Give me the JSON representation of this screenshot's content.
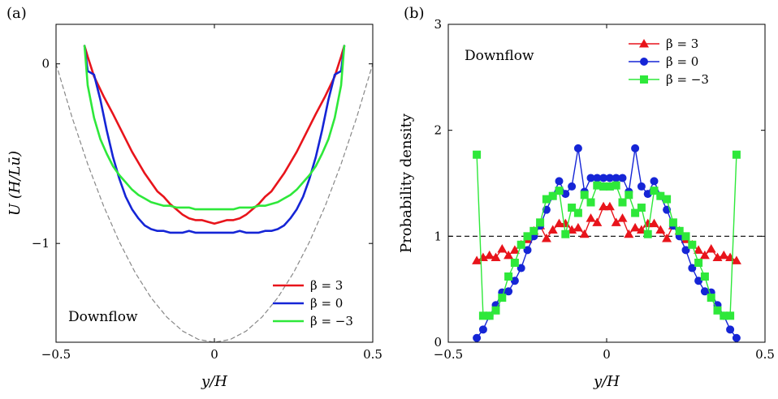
{
  "chart_data": [
    {
      "panel_label": "(a)",
      "type": "line",
      "xlabel": "y/H",
      "ylabel": "U (H/Lū)",
      "xlim": [
        -0.5,
        0.5
      ],
      "ylim": [
        -1.55,
        0.22
      ],
      "xticks": [
        "-0.5",
        "0",
        "0.5"
      ],
      "yticks": [
        "0",
        "-1"
      ],
      "annotation": "Downflow",
      "legend_position": "bottom-right",
      "series": [
        {
          "name": "β = 3",
          "color": "#e8141b",
          "x": [
            -0.41,
            -0.4,
            -0.38,
            -0.35,
            -0.32,
            -0.3,
            -0.28,
            -0.26,
            -0.24,
            -0.22,
            -0.2,
            -0.18,
            -0.16,
            -0.14,
            -0.12,
            -0.1,
            -0.08,
            -0.06,
            -0.04,
            -0.02,
            0.0,
            0.02,
            0.04,
            0.06,
            0.08,
            0.1,
            0.12,
            0.14,
            0.16,
            0.18,
            0.2,
            0.22,
            0.24,
            0.26,
            0.28,
            0.3,
            0.32,
            0.35,
            0.38,
            0.4,
            0.41
          ],
          "y": [
            0.1,
            0.04,
            -0.07,
            -0.18,
            -0.28,
            -0.35,
            -0.42,
            -0.49,
            -0.55,
            -0.61,
            -0.66,
            -0.71,
            -0.74,
            -0.78,
            -0.81,
            -0.84,
            -0.86,
            -0.87,
            -0.87,
            -0.88,
            -0.89,
            -0.88,
            -0.87,
            -0.87,
            -0.86,
            -0.84,
            -0.81,
            -0.78,
            -0.74,
            -0.71,
            -0.66,
            -0.61,
            -0.55,
            -0.49,
            -0.42,
            -0.35,
            -0.28,
            -0.18,
            -0.07,
            0.04,
            0.1
          ]
        },
        {
          "name": "β = 0",
          "color": "#1525d6",
          "x": [
            -0.41,
            -0.4,
            -0.38,
            -0.36,
            -0.34,
            -0.32,
            -0.3,
            -0.28,
            -0.26,
            -0.24,
            -0.22,
            -0.2,
            -0.18,
            -0.16,
            -0.14,
            -0.12,
            -0.1,
            -0.08,
            -0.06,
            -0.04,
            -0.02,
            0.0,
            0.02,
            0.04,
            0.06,
            0.08,
            0.1,
            0.12,
            0.14,
            0.16,
            0.18,
            0.2,
            0.22,
            0.24,
            0.26,
            0.28,
            0.3,
            0.32,
            0.34,
            0.36,
            0.38,
            0.4,
            0.41
          ],
          "y": [
            0.1,
            -0.04,
            -0.06,
            -0.2,
            -0.37,
            -0.52,
            -0.64,
            -0.74,
            -0.81,
            -0.86,
            -0.9,
            -0.92,
            -0.93,
            -0.93,
            -0.94,
            -0.94,
            -0.94,
            -0.93,
            -0.94,
            -0.94,
            -0.94,
            -0.94,
            -0.94,
            -0.94,
            -0.94,
            -0.93,
            -0.94,
            -0.94,
            -0.94,
            -0.93,
            -0.93,
            -0.92,
            -0.9,
            -0.86,
            -0.81,
            -0.74,
            -0.64,
            -0.52,
            -0.37,
            -0.2,
            -0.06,
            -0.04,
            0.1
          ]
        },
        {
          "name": "β = −3",
          "color": "#2ee83a",
          "x": [
            -0.41,
            -0.4,
            -0.38,
            -0.36,
            -0.34,
            -0.32,
            -0.3,
            -0.28,
            -0.26,
            -0.24,
            -0.22,
            -0.2,
            -0.18,
            -0.16,
            -0.14,
            -0.12,
            -0.1,
            -0.08,
            -0.06,
            -0.04,
            -0.02,
            0.0,
            0.02,
            0.04,
            0.06,
            0.08,
            0.1,
            0.12,
            0.14,
            0.16,
            0.18,
            0.2,
            0.22,
            0.24,
            0.26,
            0.28,
            0.3,
            0.32,
            0.34,
            0.36,
            0.38,
            0.4,
            0.41
          ],
          "y": [
            0.1,
            -0.12,
            -0.3,
            -0.42,
            -0.5,
            -0.57,
            -0.62,
            -0.66,
            -0.7,
            -0.73,
            -0.75,
            -0.77,
            -0.78,
            -0.79,
            -0.79,
            -0.8,
            -0.8,
            -0.8,
            -0.81,
            -0.81,
            -0.81,
            -0.81,
            -0.81,
            -0.81,
            -0.81,
            -0.8,
            -0.8,
            -0.8,
            -0.79,
            -0.79,
            -0.78,
            -0.77,
            -0.75,
            -0.73,
            -0.7,
            -0.66,
            -0.62,
            -0.57,
            -0.5,
            -0.42,
            -0.3,
            -0.12,
            0.1
          ]
        },
        {
          "name": "",
          "color": "#888888",
          "dashed": true,
          "x": [
            -0.5,
            -0.45,
            -0.4,
            -0.35,
            -0.3,
            -0.25,
            -0.2,
            -0.15,
            -0.1,
            -0.05,
            0.0,
            0.05,
            0.1,
            0.15,
            0.2,
            0.25,
            0.3,
            0.35,
            0.4,
            0.45,
            0.5
          ],
          "y": [
            0.0,
            -0.2945,
            -0.558,
            -0.7905,
            -0.992,
            -1.1625,
            -1.302,
            -1.4105,
            -1.488,
            -1.5345,
            -1.55,
            -1.5345,
            -1.488,
            -1.4105,
            -1.302,
            -1.1625,
            -0.992,
            -0.7905,
            -0.558,
            -0.2945,
            0.0
          ]
        }
      ]
    },
    {
      "panel_label": "(b)",
      "type": "line",
      "xlabel": "y/H",
      "ylabel": "Probability density",
      "xlim": [
        -0.5,
        0.5
      ],
      "ylim": [
        0,
        3
      ],
      "xticks": [
        "-0.5",
        "0",
        "0.5"
      ],
      "yticks": [
        "0",
        "1",
        "2",
        "3"
      ],
      "annotation": "Downflow",
      "reference_line": 1,
      "legend_position": "top-right",
      "series": [
        {
          "name": "β = 3",
          "color": "#e8141b",
          "marker": "triangle",
          "x": [
            -0.41,
            -0.39,
            -0.37,
            -0.35,
            -0.33,
            -0.31,
            -0.29,
            -0.27,
            -0.25,
            -0.23,
            -0.21,
            -0.19,
            -0.17,
            -0.15,
            -0.13,
            -0.11,
            -0.09,
            -0.07,
            -0.05,
            -0.03,
            -0.01,
            0.01,
            0.03,
            0.05,
            0.07,
            0.09,
            0.11,
            0.13,
            0.15,
            0.17,
            0.19,
            0.21,
            0.23,
            0.25,
            0.27,
            0.29,
            0.31,
            0.33,
            0.35,
            0.37,
            0.39,
            0.41
          ],
          "y": [
            0.77,
            0.8,
            0.82,
            0.8,
            0.88,
            0.82,
            0.87,
            0.92,
            0.97,
            1.05,
            1.1,
            0.98,
            1.06,
            1.12,
            1.12,
            1.06,
            1.08,
            1.02,
            1.17,
            1.13,
            1.28,
            1.28,
            1.13,
            1.17,
            1.02,
            1.08,
            1.06,
            1.12,
            1.12,
            1.06,
            0.98,
            1.1,
            1.05,
            0.97,
            0.92,
            0.87,
            0.82,
            0.88,
            0.8,
            0.82,
            0.8,
            0.77
          ]
        },
        {
          "name": "β = 0",
          "color": "#1525d6",
          "marker": "circle",
          "x": [
            -0.41,
            -0.39,
            -0.37,
            -0.35,
            -0.33,
            -0.31,
            -0.29,
            -0.27,
            -0.25,
            -0.23,
            -0.21,
            -0.19,
            -0.17,
            -0.15,
            -0.13,
            -0.11,
            -0.09,
            -0.07,
            -0.05,
            -0.03,
            -0.01,
            0.01,
            0.03,
            0.05,
            0.07,
            0.09,
            0.11,
            0.13,
            0.15,
            0.17,
            0.19,
            0.21,
            0.23,
            0.25,
            0.27,
            0.29,
            0.31,
            0.33,
            0.35,
            0.37,
            0.39,
            0.41
          ],
          "y": [
            0.04,
            0.12,
            0.25,
            0.35,
            0.47,
            0.48,
            0.58,
            0.7,
            0.87,
            1.0,
            1.1,
            1.25,
            1.38,
            1.52,
            1.4,
            1.47,
            1.83,
            1.42,
            1.55,
            1.55,
            1.55,
            1.55,
            1.55,
            1.55,
            1.42,
            1.83,
            1.47,
            1.4,
            1.52,
            1.38,
            1.25,
            1.1,
            1.0,
            0.87,
            0.7,
            0.58,
            0.48,
            0.47,
            0.35,
            0.25,
            0.12,
            0.04
          ]
        },
        {
          "name": "β = −3",
          "color": "#2ee83a",
          "marker": "square",
          "x": [
            -0.41,
            -0.39,
            -0.37,
            -0.35,
            -0.33,
            -0.31,
            -0.29,
            -0.27,
            -0.25,
            -0.23,
            -0.21,
            -0.19,
            -0.17,
            -0.15,
            -0.13,
            -0.11,
            -0.09,
            -0.07,
            -0.05,
            -0.03,
            -0.01,
            0.01,
            0.03,
            0.05,
            0.07,
            0.09,
            0.11,
            0.13,
            0.15,
            0.17,
            0.19,
            0.21,
            0.23,
            0.25,
            0.27,
            0.29,
            0.31,
            0.33,
            0.35,
            0.37,
            0.39,
            0.41
          ],
          "y": [
            1.77,
            0.25,
            0.25,
            0.3,
            0.42,
            0.62,
            0.75,
            0.92,
            1.0,
            1.05,
            1.13,
            1.35,
            1.38,
            1.43,
            1.02,
            1.27,
            1.22,
            1.39,
            1.32,
            1.48,
            1.47,
            1.47,
            1.48,
            1.32,
            1.39,
            1.22,
            1.27,
            1.02,
            1.43,
            1.38,
            1.35,
            1.13,
            1.05,
            1.0,
            0.92,
            0.75,
            0.62,
            0.42,
            0.3,
            0.25,
            0.25,
            1.77
          ]
        }
      ]
    }
  ]
}
